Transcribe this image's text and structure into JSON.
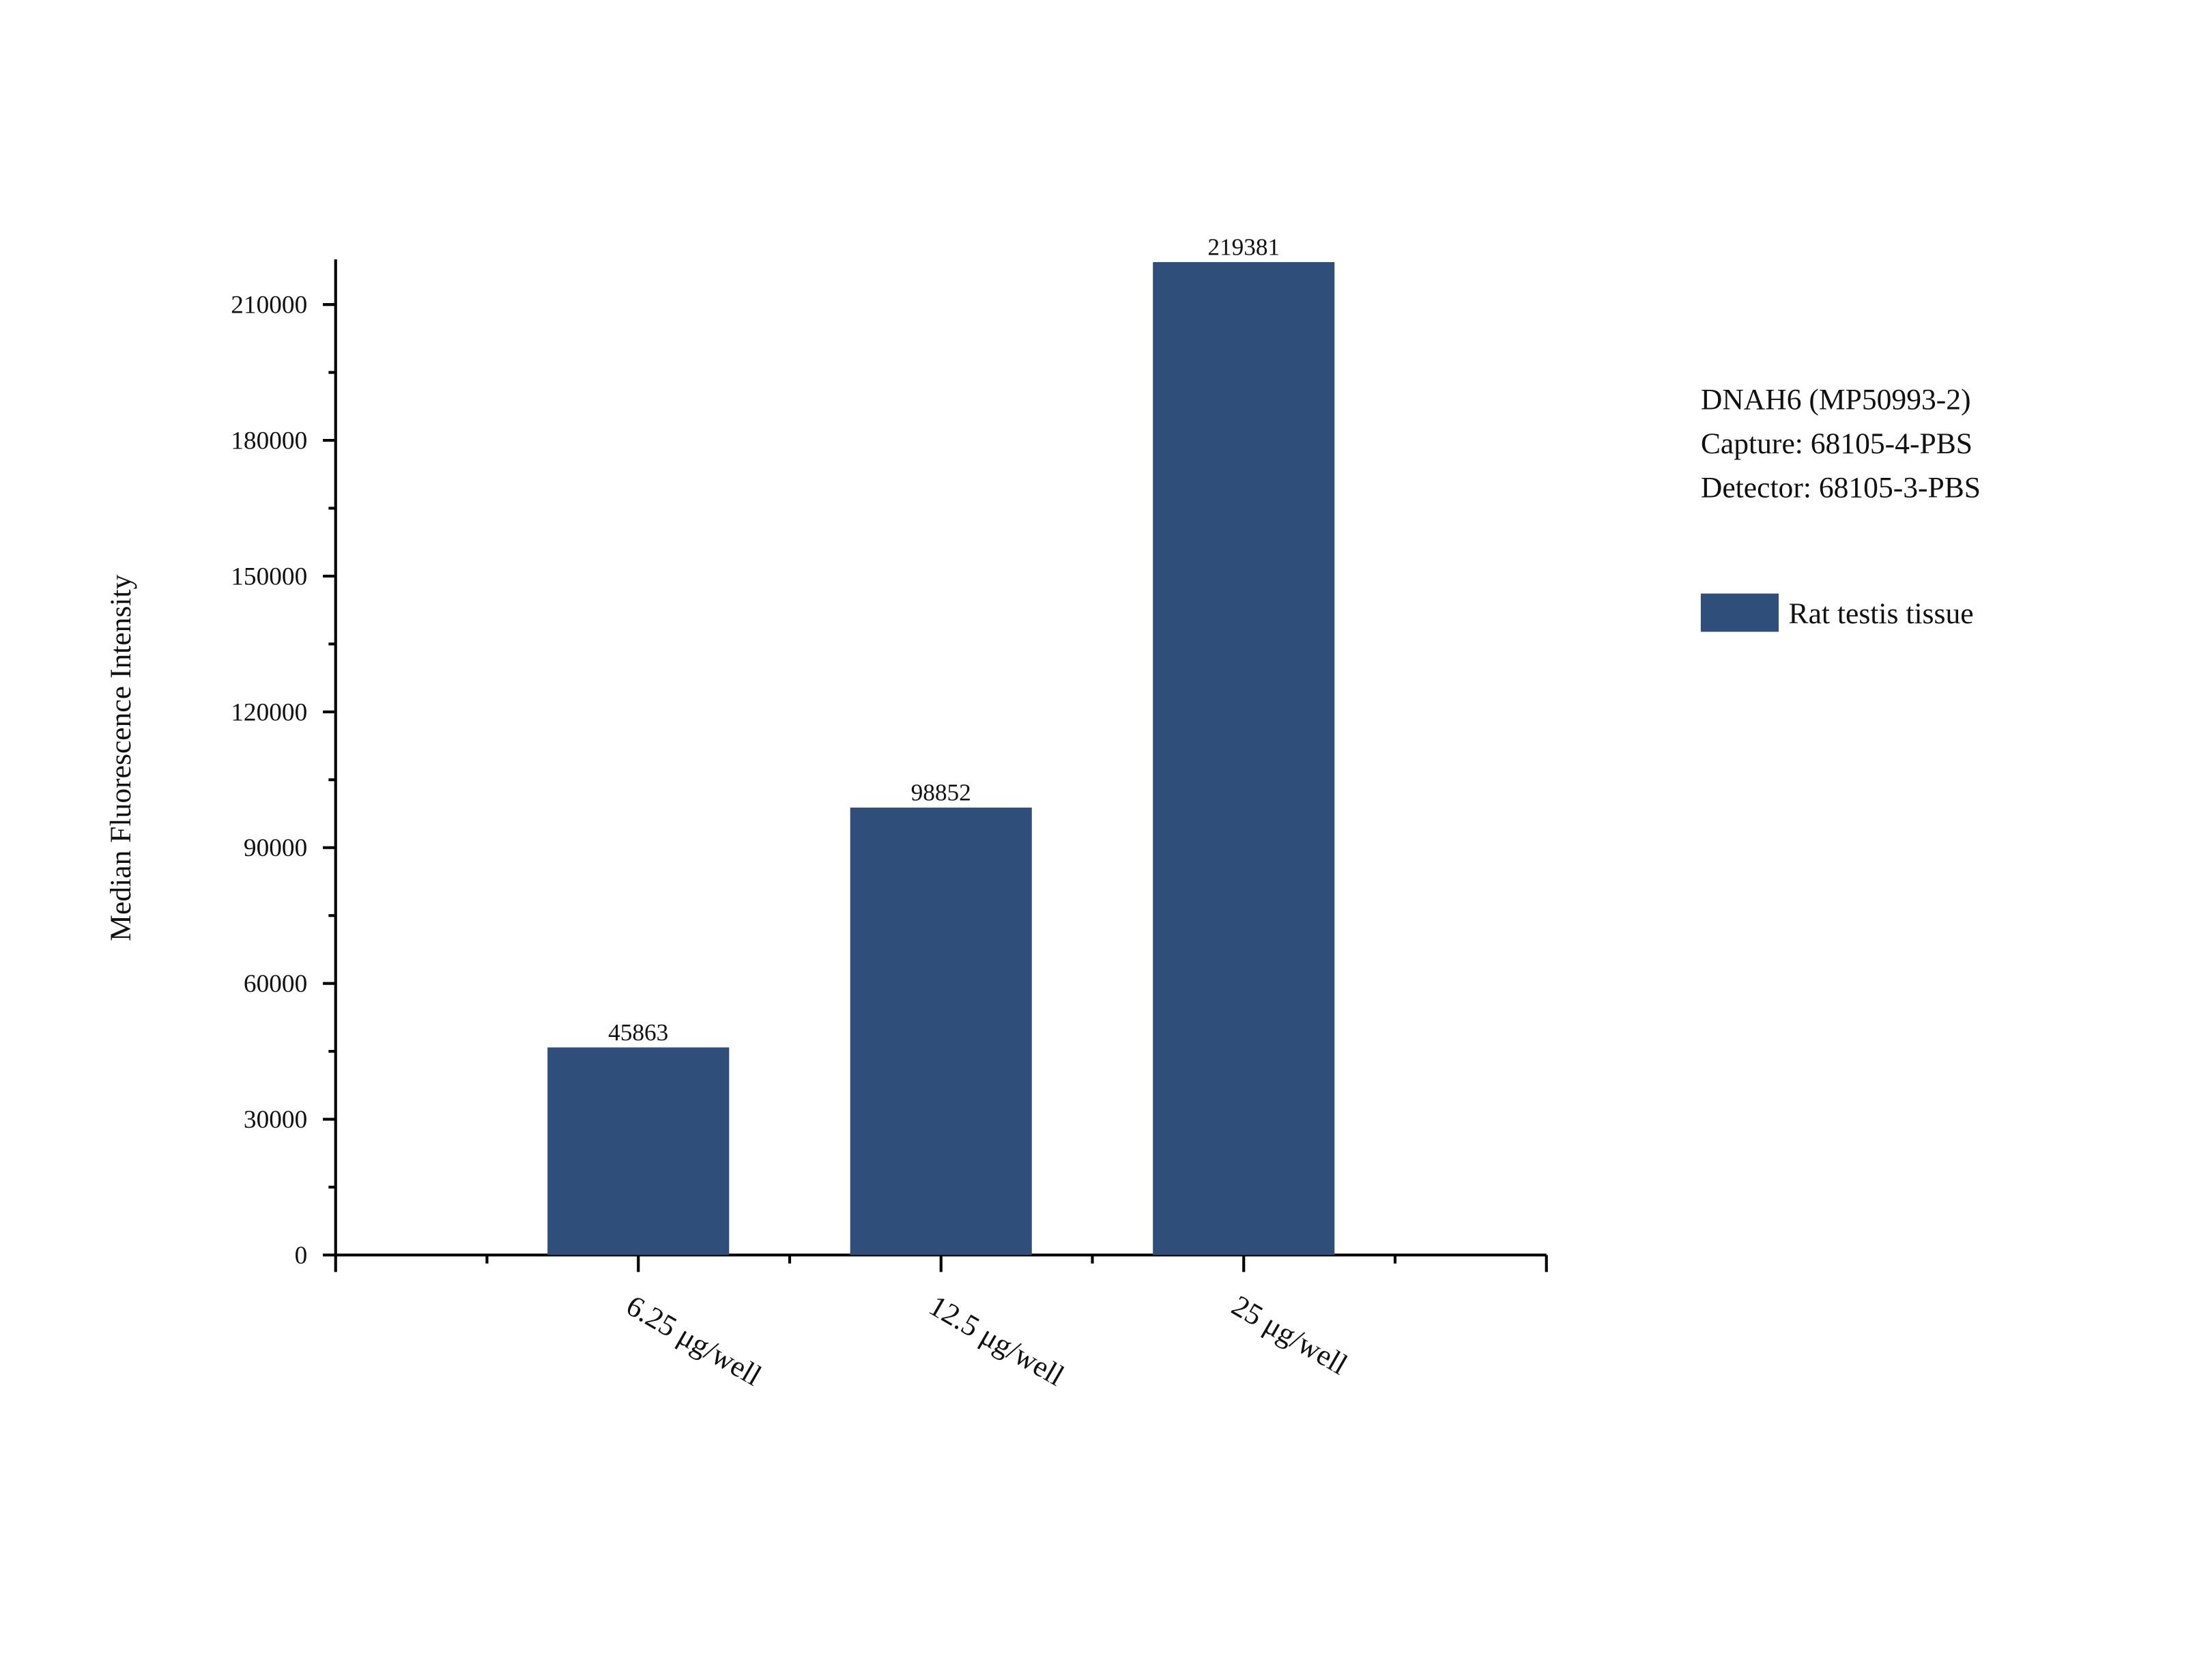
{
  "chart_data": {
    "type": "bar",
    "y_label": "Median Fluorescence Intensity",
    "annotations": [
      "DNAH6 (MP50993-2)",
      "Capture: 68105-4-PBS",
      "Detector: 68105-3-PBS"
    ],
    "categories": [
      "6.25 μg/well",
      "12.5 μg/well",
      "25 μg/well"
    ],
    "series": [
      {
        "name": "Rat testis tissue",
        "color": "#2f4f7a",
        "values": [
          45863,
          98852,
          219381
        ]
      }
    ],
    "ylim": [
      0,
      220000
    ],
    "yticks": [
      0,
      30000,
      60000,
      90000,
      120000,
      150000,
      180000,
      210000
    ],
    "grid": false
  }
}
